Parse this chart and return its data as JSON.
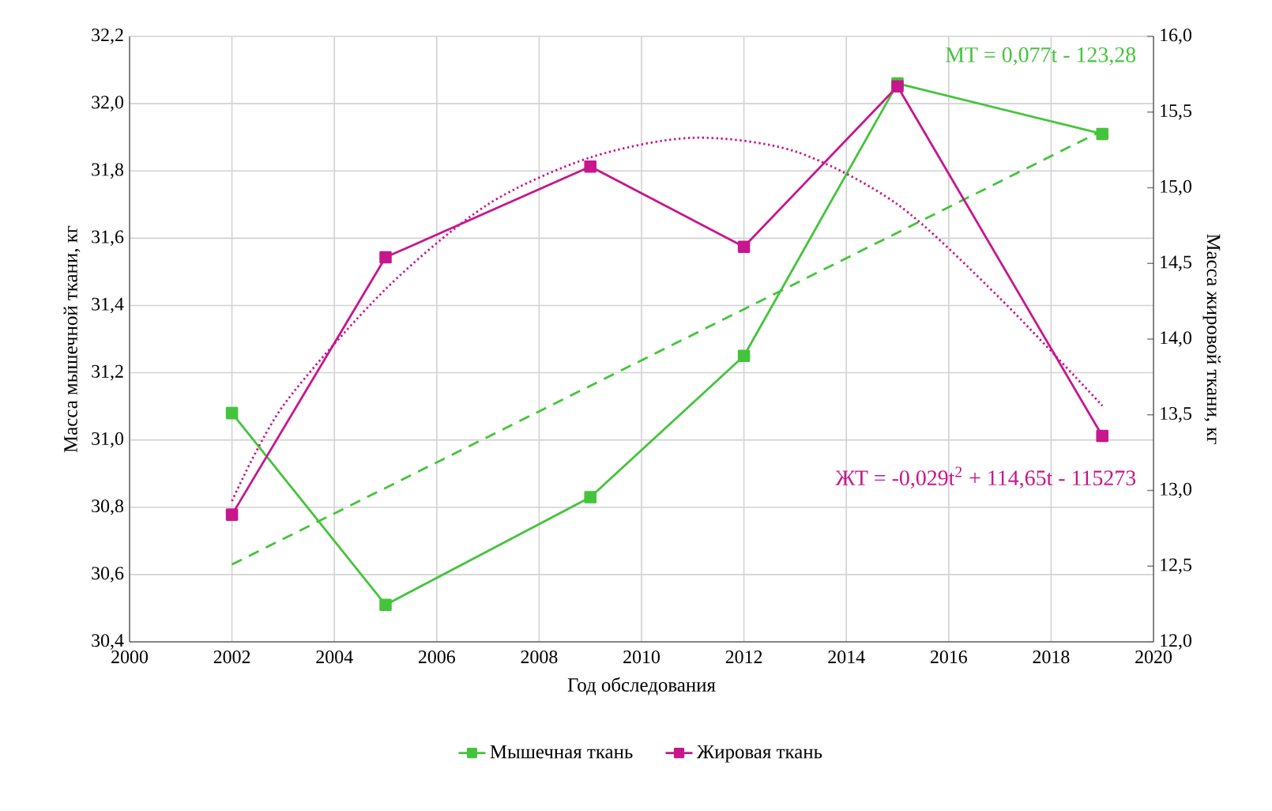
{
  "chart_data": {
    "type": "line",
    "xlabel": "Год обследования",
    "ylabel": "Масса мышечной ткани, кг",
    "y2label": "Масса жировой ткани, кг",
    "annotations": [
      "МТ = 0,077t - 123,28",
      "ЖТ = -0,029t$^{2}$ + 114,65t - 115273"
    ],
    "xlim": [
      2000,
      2020
    ],
    "xticks": [
      2000,
      2002,
      2004,
      2006,
      2008,
      2010,
      2012,
      2014,
      2016,
      2018,
      2020
    ],
    "ylim": [
      30.4,
      32.2
    ],
    "yticks": [
      {
        "value": 30.4,
        "label": "30,4"
      },
      {
        "value": 30.6,
        "label": "30,6"
      },
      {
        "value": 30.8,
        "label": "30,8"
      },
      {
        "value": 31.0,
        "label": "31,0"
      },
      {
        "value": 31.2,
        "label": "31,2"
      },
      {
        "value": 31.4,
        "label": "31,4"
      },
      {
        "value": 31.6,
        "label": "31,6"
      },
      {
        "value": 31.8,
        "label": "31,8"
      },
      {
        "value": 32.0,
        "label": "32,0"
      },
      {
        "value": 32.2,
        "label": "32,2"
      }
    ],
    "y2lim": [
      12,
      16
    ],
    "y2ticks": [
      {
        "value": 12,
        "label": "12,0"
      },
      {
        "value": 12.5,
        "label": "12,5"
      },
      {
        "value": 13,
        "label": "13,0"
      },
      {
        "value": 13.5,
        "label": "13,5"
      },
      {
        "value": 14,
        "label": "14,0"
      },
      {
        "value": 14.5,
        "label": "14,5"
      },
      {
        "value": 15,
        "label": "15,0"
      },
      {
        "value": 15.5,
        "label": "15,5"
      },
      {
        "value": 16,
        "label": "16,0"
      }
    ],
    "grid": true,
    "legend": "bottom",
    "marker": "square",
    "series": [
      {
        "name": "Мышечная ткань",
        "color": "#44c43c",
        "x": [
          2002,
          2005,
          2009,
          2012,
          2015,
          2019
        ],
        "values": [
          31.08,
          30.51,
          30.83,
          31.25,
          32.06,
          31.91
        ]
      },
      {
        "name": "Жировая ткань",
        "color": "#c8168c",
        "axis": "y2",
        "x": [
          2002,
          2005,
          2009,
          2012,
          2015,
          2019
        ],
        "values": [
          12.84,
          14.54,
          15.14,
          14.61,
          15.67,
          13.36
        ]
      },
      {
        "color": "#44c43c",
        "marker": "none",
        "line_style": "dashed",
        "x": [
          2002,
          2019
        ],
        "values": [
          30.63,
          31.92
        ]
      },
      {
        "color": "#c8168c",
        "marker": "none",
        "line_style": "dotted",
        "axis": "y2",
        "x": [
          2002,
          2003,
          2005,
          2007,
          2009,
          2011,
          2013,
          2015,
          2017,
          2019
        ],
        "values": [
          12.93,
          13.56,
          14.33,
          14.89,
          15.2,
          15.33,
          15.24,
          14.89,
          14.27,
          13.56
        ]
      }
    ]
  }
}
